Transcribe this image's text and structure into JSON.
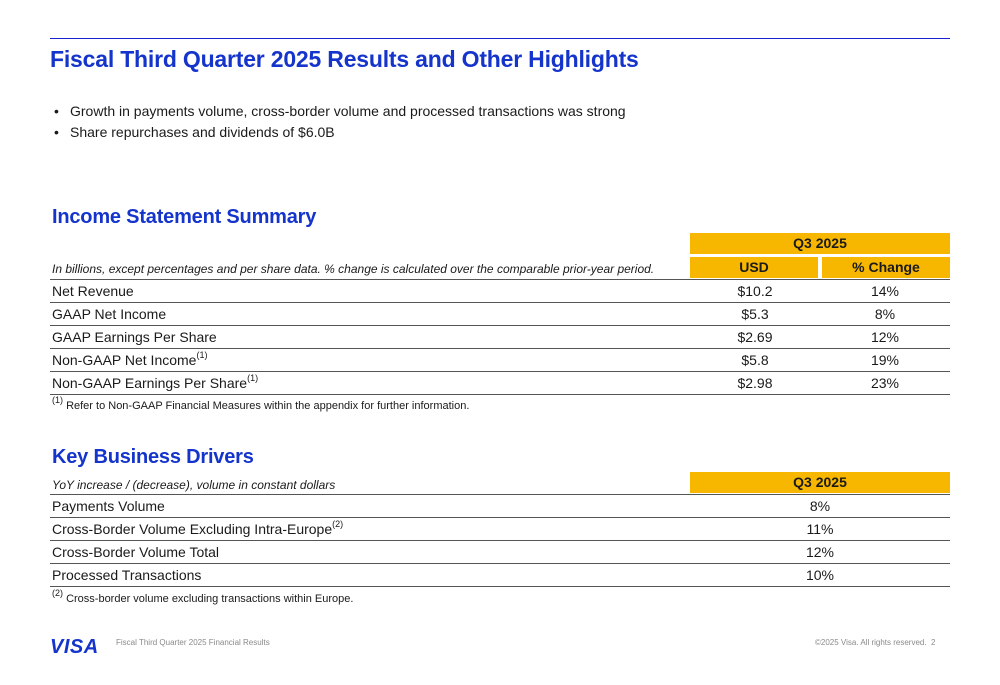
{
  "header": {
    "title": "Fiscal Third Quarter 2025 Results and Other Highlights"
  },
  "highlights": [
    "Growth in payments volume, cross-border volume and processed transactions was strong",
    "Share repurchases and dividends of $6.0B"
  ],
  "bullet_symbol": "•",
  "income": {
    "title": "Income Statement Summary",
    "period": "Q3 2025",
    "note": "In billions, except percentages and per share data. % change is calculated over the comparable prior-year period.",
    "col_usd": "USD",
    "col_change": "% Change",
    "rows": [
      {
        "label": "Net Revenue",
        "sup": "",
        "usd": "$10.2",
        "change": "14%"
      },
      {
        "label": "GAAP Net Income",
        "sup": "",
        "usd": "$5.3",
        "change": "8%"
      },
      {
        "label": "GAAP Earnings Per Share",
        "sup": "",
        "usd": "$2.69",
        "change": "12%"
      },
      {
        "label": "Non-GAAP Net Income",
        "sup": "(1)",
        "usd": "$5.8",
        "change": "19%"
      },
      {
        "label": "Non-GAAP Earnings Per Share",
        "sup": "(1)",
        "usd": "$2.98",
        "change": "23%"
      }
    ],
    "footnote_mark": "(1)",
    "footnote": "Refer to Non-GAAP Financial Measures within the appendix for further information."
  },
  "drivers": {
    "title": "Key Business Drivers",
    "note": "YoY increase / (decrease), volume in constant dollars",
    "period": "Q3 2025",
    "rows": [
      {
        "label": "Payments Volume",
        "sup": "",
        "value": "8%"
      },
      {
        "label": "Cross-Border Volume Excluding Intra-Europe",
        "sup": "(2)",
        "value": "11%"
      },
      {
        "label": "Cross-Border Volume Total",
        "sup": "",
        "value": "12%"
      },
      {
        "label": "Processed Transactions",
        "sup": "",
        "value": "10%"
      }
    ],
    "footnote_mark": "(2)",
    "footnote": "Cross-border volume excluding transactions within Europe."
  },
  "footer": {
    "logo": "VISA",
    "caption": "Fiscal Third Quarter 2025 Financial Results",
    "copyright": "©2025 Visa. All rights reserved.",
    "page": "2"
  },
  "colors": {
    "brand_blue": "#1434cb",
    "gold": "#f7b600"
  }
}
